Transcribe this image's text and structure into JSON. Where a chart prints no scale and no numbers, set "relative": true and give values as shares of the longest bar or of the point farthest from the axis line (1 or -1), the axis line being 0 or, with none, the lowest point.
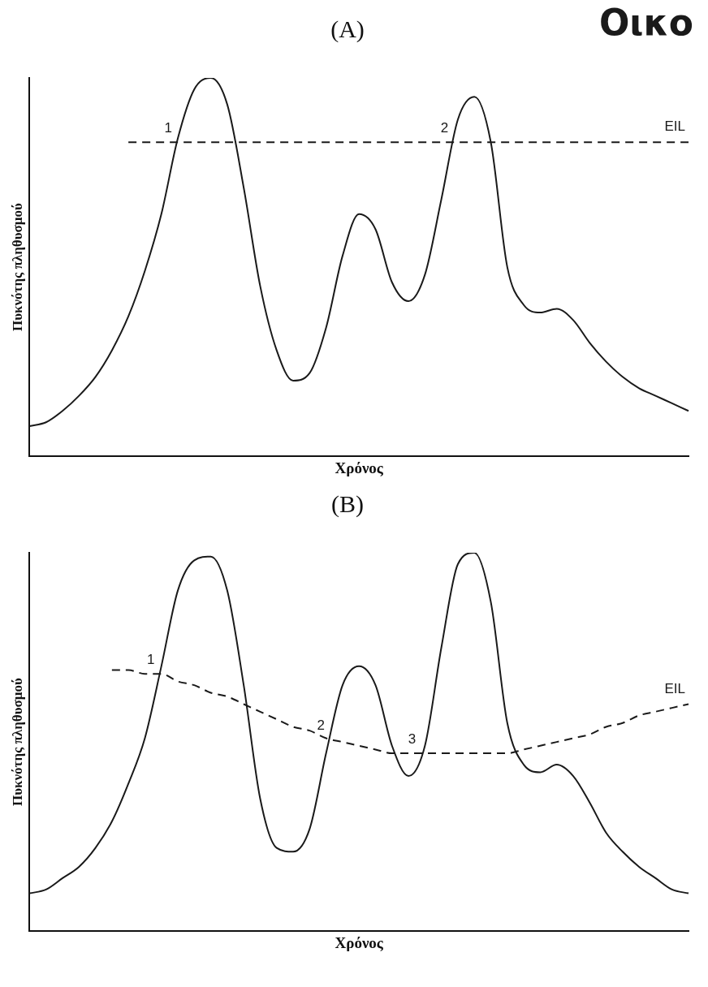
{
  "chart_data": [
    {
      "type": "line",
      "title": "(A)",
      "subtitle": "Οικο",
      "xlabel": "Χρόνος",
      "ylabel": "Πυκνότης πληθυσμού",
      "relative": true,
      "tick_labels": false,
      "grid": false,
      "legend": false,
      "marker": "none",
      "categories": [
        null,
        null,
        null,
        null,
        null,
        null,
        null,
        null,
        null,
        null,
        null,
        null,
        null,
        null,
        null,
        null,
        null,
        null,
        null,
        null,
        null,
        null,
        null,
        null,
        null,
        null,
        null,
        null,
        null,
        null,
        null,
        null,
        null,
        null,
        null,
        null,
        null,
        null,
        null,
        null,
        null
      ],
      "series": [
        {
          "color": "#1a1a1a",
          "line_style": "solid",
          "values": [
            0.08,
            0.09,
            0.12,
            0.16,
            0.21,
            0.28,
            0.37,
            0.49,
            0.64,
            0.84,
            0.97,
            1,
            0.93,
            0.71,
            0.45,
            0.28,
            0.2,
            0.22,
            0.34,
            0.53,
            0.64,
            0.6,
            0.46,
            0.41,
            0.48,
            0.68,
            0.89,
            0.95,
            0.83,
            0.5,
            0.4,
            0.38,
            0.39,
            0.36,
            0.3,
            0.25,
            0.21,
            0.18,
            0.16,
            0.14,
            0.12
          ]
        },
        {
          "name": "EIL",
          "color": "#1a1a1a",
          "line_style": "dashed",
          "values": [
            null,
            null,
            null,
            null,
            null,
            null,
            0.83,
            0.83,
            0.83,
            0.83,
            0.83,
            0.83,
            0.83,
            0.83,
            0.83,
            0.83,
            0.83,
            0.83,
            0.83,
            0.83,
            0.83,
            0.83,
            0.83,
            0.83,
            0.83,
            0.83,
            0.83,
            0.83,
            0.83,
            0.83,
            0.83,
            0.83,
            0.83,
            0.83,
            0.83,
            0.83,
            0.83,
            0.83,
            0.83,
            0.83,
            0.83
          ]
        }
      ],
      "annotations": [
        "1",
        "2"
      ]
    },
    {
      "type": "line",
      "title": "(B)",
      "xlabel": "Χρόνος",
      "ylabel": "Πυκνότης πληθυσμού",
      "relative": true,
      "tick_labels": false,
      "grid": false,
      "legend": false,
      "marker": "none",
      "categories": [
        null,
        null,
        null,
        null,
        null,
        null,
        null,
        null,
        null,
        null,
        null,
        null,
        null,
        null,
        null,
        null,
        null,
        null,
        null,
        null,
        null,
        null,
        null,
        null,
        null,
        null,
        null,
        null,
        null,
        null,
        null,
        null,
        null,
        null,
        null,
        null,
        null,
        null,
        null,
        null,
        null
      ],
      "series": [
        {
          "color": "#1a1a1a",
          "line_style": "solid",
          "values": [
            0.1,
            0.11,
            0.14,
            0.17,
            0.22,
            0.29,
            0.39,
            0.51,
            0.7,
            0.9,
            0.98,
            0.99,
            0.9,
            0.65,
            0.35,
            0.22,
            0.21,
            0.27,
            0.47,
            0.65,
            0.7,
            0.65,
            0.49,
            0.41,
            0.49,
            0.75,
            0.97,
            1,
            0.87,
            0.55,
            0.44,
            0.42,
            0.44,
            0.41,
            0.34,
            0.26,
            0.21,
            0.17,
            0.14,
            0.11,
            0.1
          ]
        },
        {
          "name": "EIL",
          "color": "#1a1a1a",
          "line_style": "dashed",
          "values": [
            null,
            null,
            null,
            null,
            null,
            0.69,
            0.69,
            0.68,
            0.68,
            0.66,
            0.65,
            0.63,
            0.62,
            0.6,
            0.58,
            0.56,
            0.54,
            0.53,
            0.51,
            0.5,
            0.49,
            0.48,
            0.47,
            0.47,
            0.47,
            0.47,
            0.47,
            0.47,
            0.47,
            0.47,
            0.48,
            0.49,
            0.5,
            0.51,
            0.52,
            0.54,
            0.55,
            0.57,
            0.58,
            0.59,
            0.6
          ]
        }
      ],
      "annotations": [
        "1",
        "2",
        "3"
      ]
    }
  ]
}
